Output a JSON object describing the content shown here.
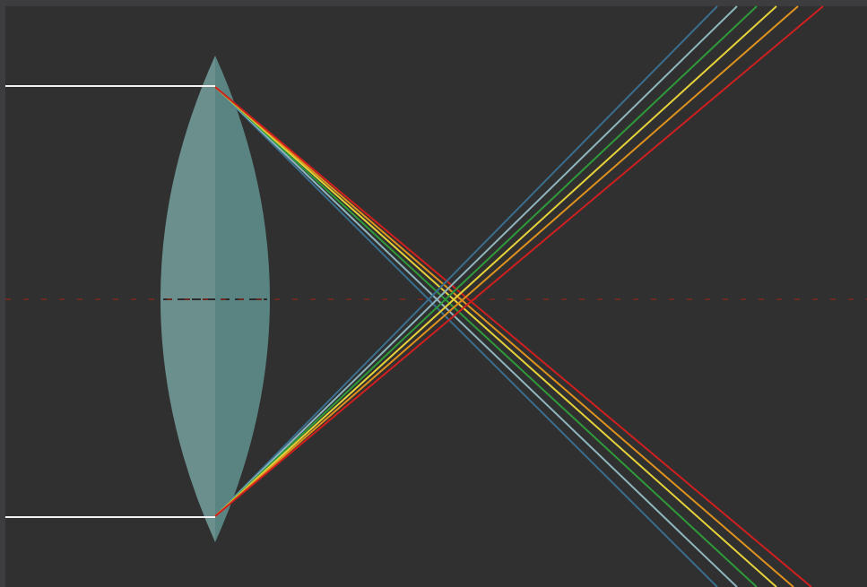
{
  "colors": {
    "frame": "#3d3d3f",
    "background": "#303030",
    "lens_left_half": "#6a8f8d",
    "lens_right_half": "#5a8481",
    "lens_center_dash": "#2c2c2c",
    "optical_axis": "#6b2b22",
    "incoming_ray": "#f2f2f2",
    "spectrum": [
      "#3a6e8e",
      "#8fb6bf",
      "#2f9a3a",
      "#e6d23a",
      "#e0921e",
      "#d01f1f"
    ]
  },
  "figure": {
    "subject": "chromatic-aberration",
    "lens_type": "biconvex",
    "incoming_ray_count": 2,
    "spectral_components": [
      "blue",
      "light-blue",
      "green",
      "yellow",
      "orange",
      "red"
    ]
  }
}
